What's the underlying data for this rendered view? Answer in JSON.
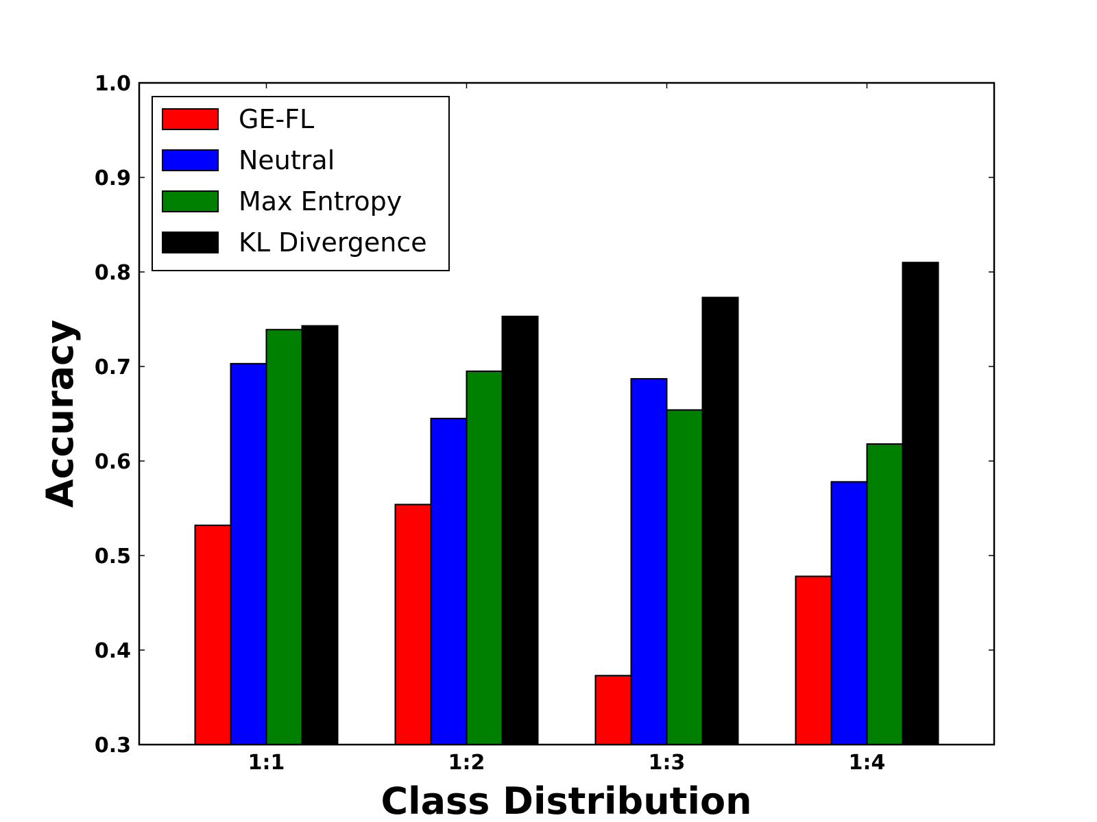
{
  "chart_data": {
    "type": "bar",
    "title": "",
    "xlabel": "Class Distribution",
    "ylabel": "Accuracy",
    "ylim": [
      0.3,
      1.0
    ],
    "yticks": [
      "0.3",
      "0.4",
      "0.5",
      "0.6",
      "0.7",
      "0.8",
      "0.9",
      "1.0"
    ],
    "categories": [
      "1:1",
      "1:2",
      "1:3",
      "1:4"
    ],
    "series": [
      {
        "name": "GE-FL",
        "color": "#ff0000",
        "values": [
          0.532,
          0.554,
          0.373,
          0.478
        ]
      },
      {
        "name": "Neutral",
        "color": "#0000ff",
        "values": [
          0.703,
          0.645,
          0.687,
          0.578
        ]
      },
      {
        "name": "Max Entropy",
        "color": "#008000",
        "values": [
          0.739,
          0.695,
          0.654,
          0.618
        ]
      },
      {
        "name": "KL Divergence",
        "color": "#000000",
        "values": [
          0.743,
          0.753,
          0.773,
          0.81
        ]
      }
    ],
    "legend_position": "top-left",
    "grid": false
  }
}
